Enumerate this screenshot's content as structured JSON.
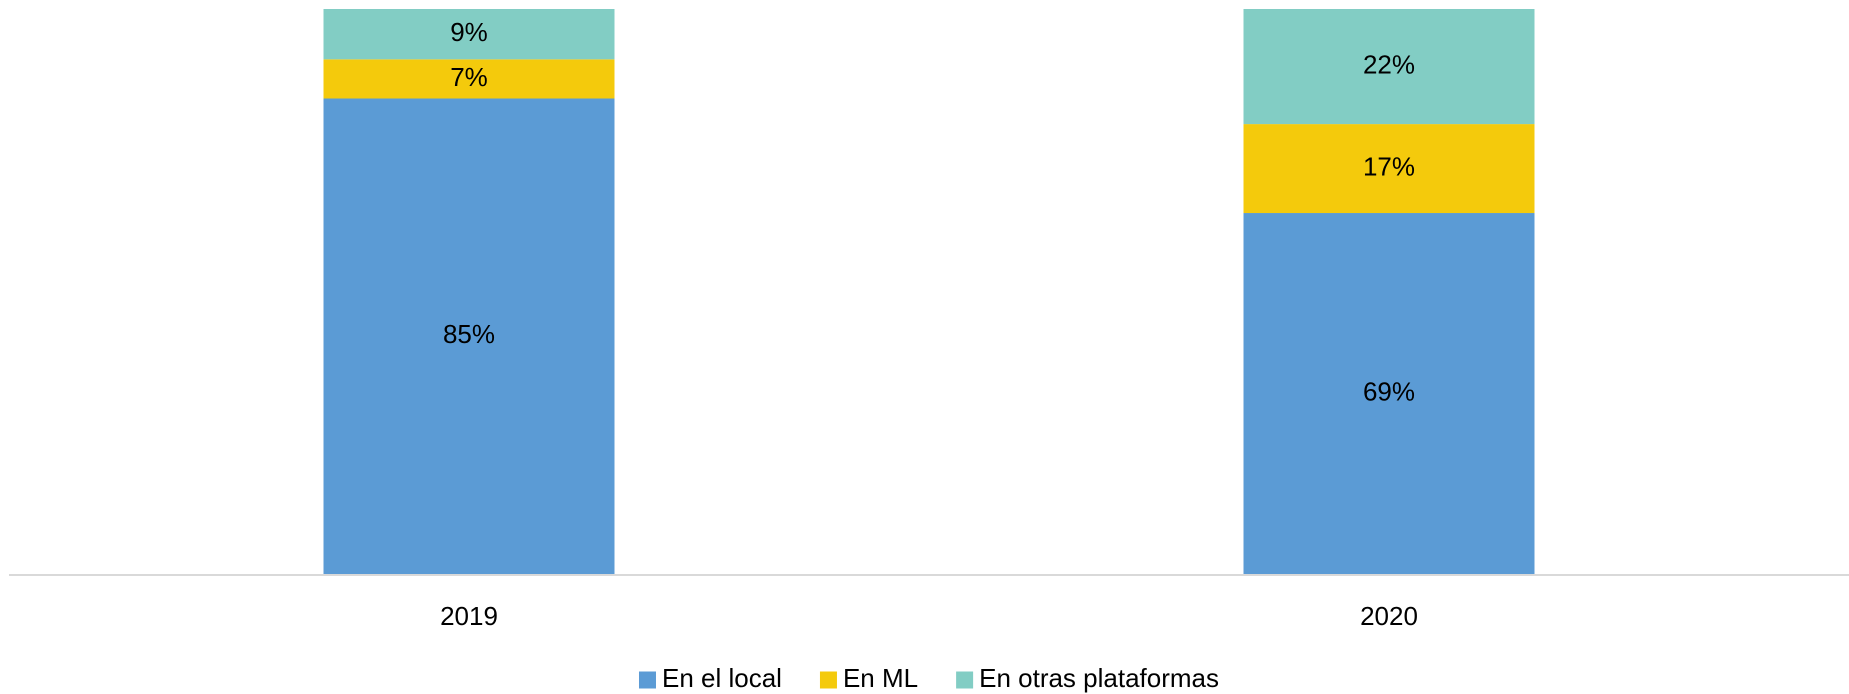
{
  "chart_data": {
    "type": "bar",
    "stacking": "percent",
    "categories": [
      "2019",
      "2020"
    ],
    "series": [
      {
        "name": "En el local",
        "color": "#5b9bd5",
        "values": [
          85,
          69
        ]
      },
      {
        "name": "En ML",
        "color": "#f4ca0c",
        "values": [
          7,
          17
        ]
      },
      {
        "name": "En otras plataformas",
        "color": "#82cdc4",
        "values": [
          9,
          22
        ]
      }
    ],
    "value_labels": [
      [
        "85%",
        "69%"
      ],
      [
        "7%",
        "17%"
      ],
      [
        "9%",
        "22%"
      ]
    ],
    "legend": "bottom"
  }
}
